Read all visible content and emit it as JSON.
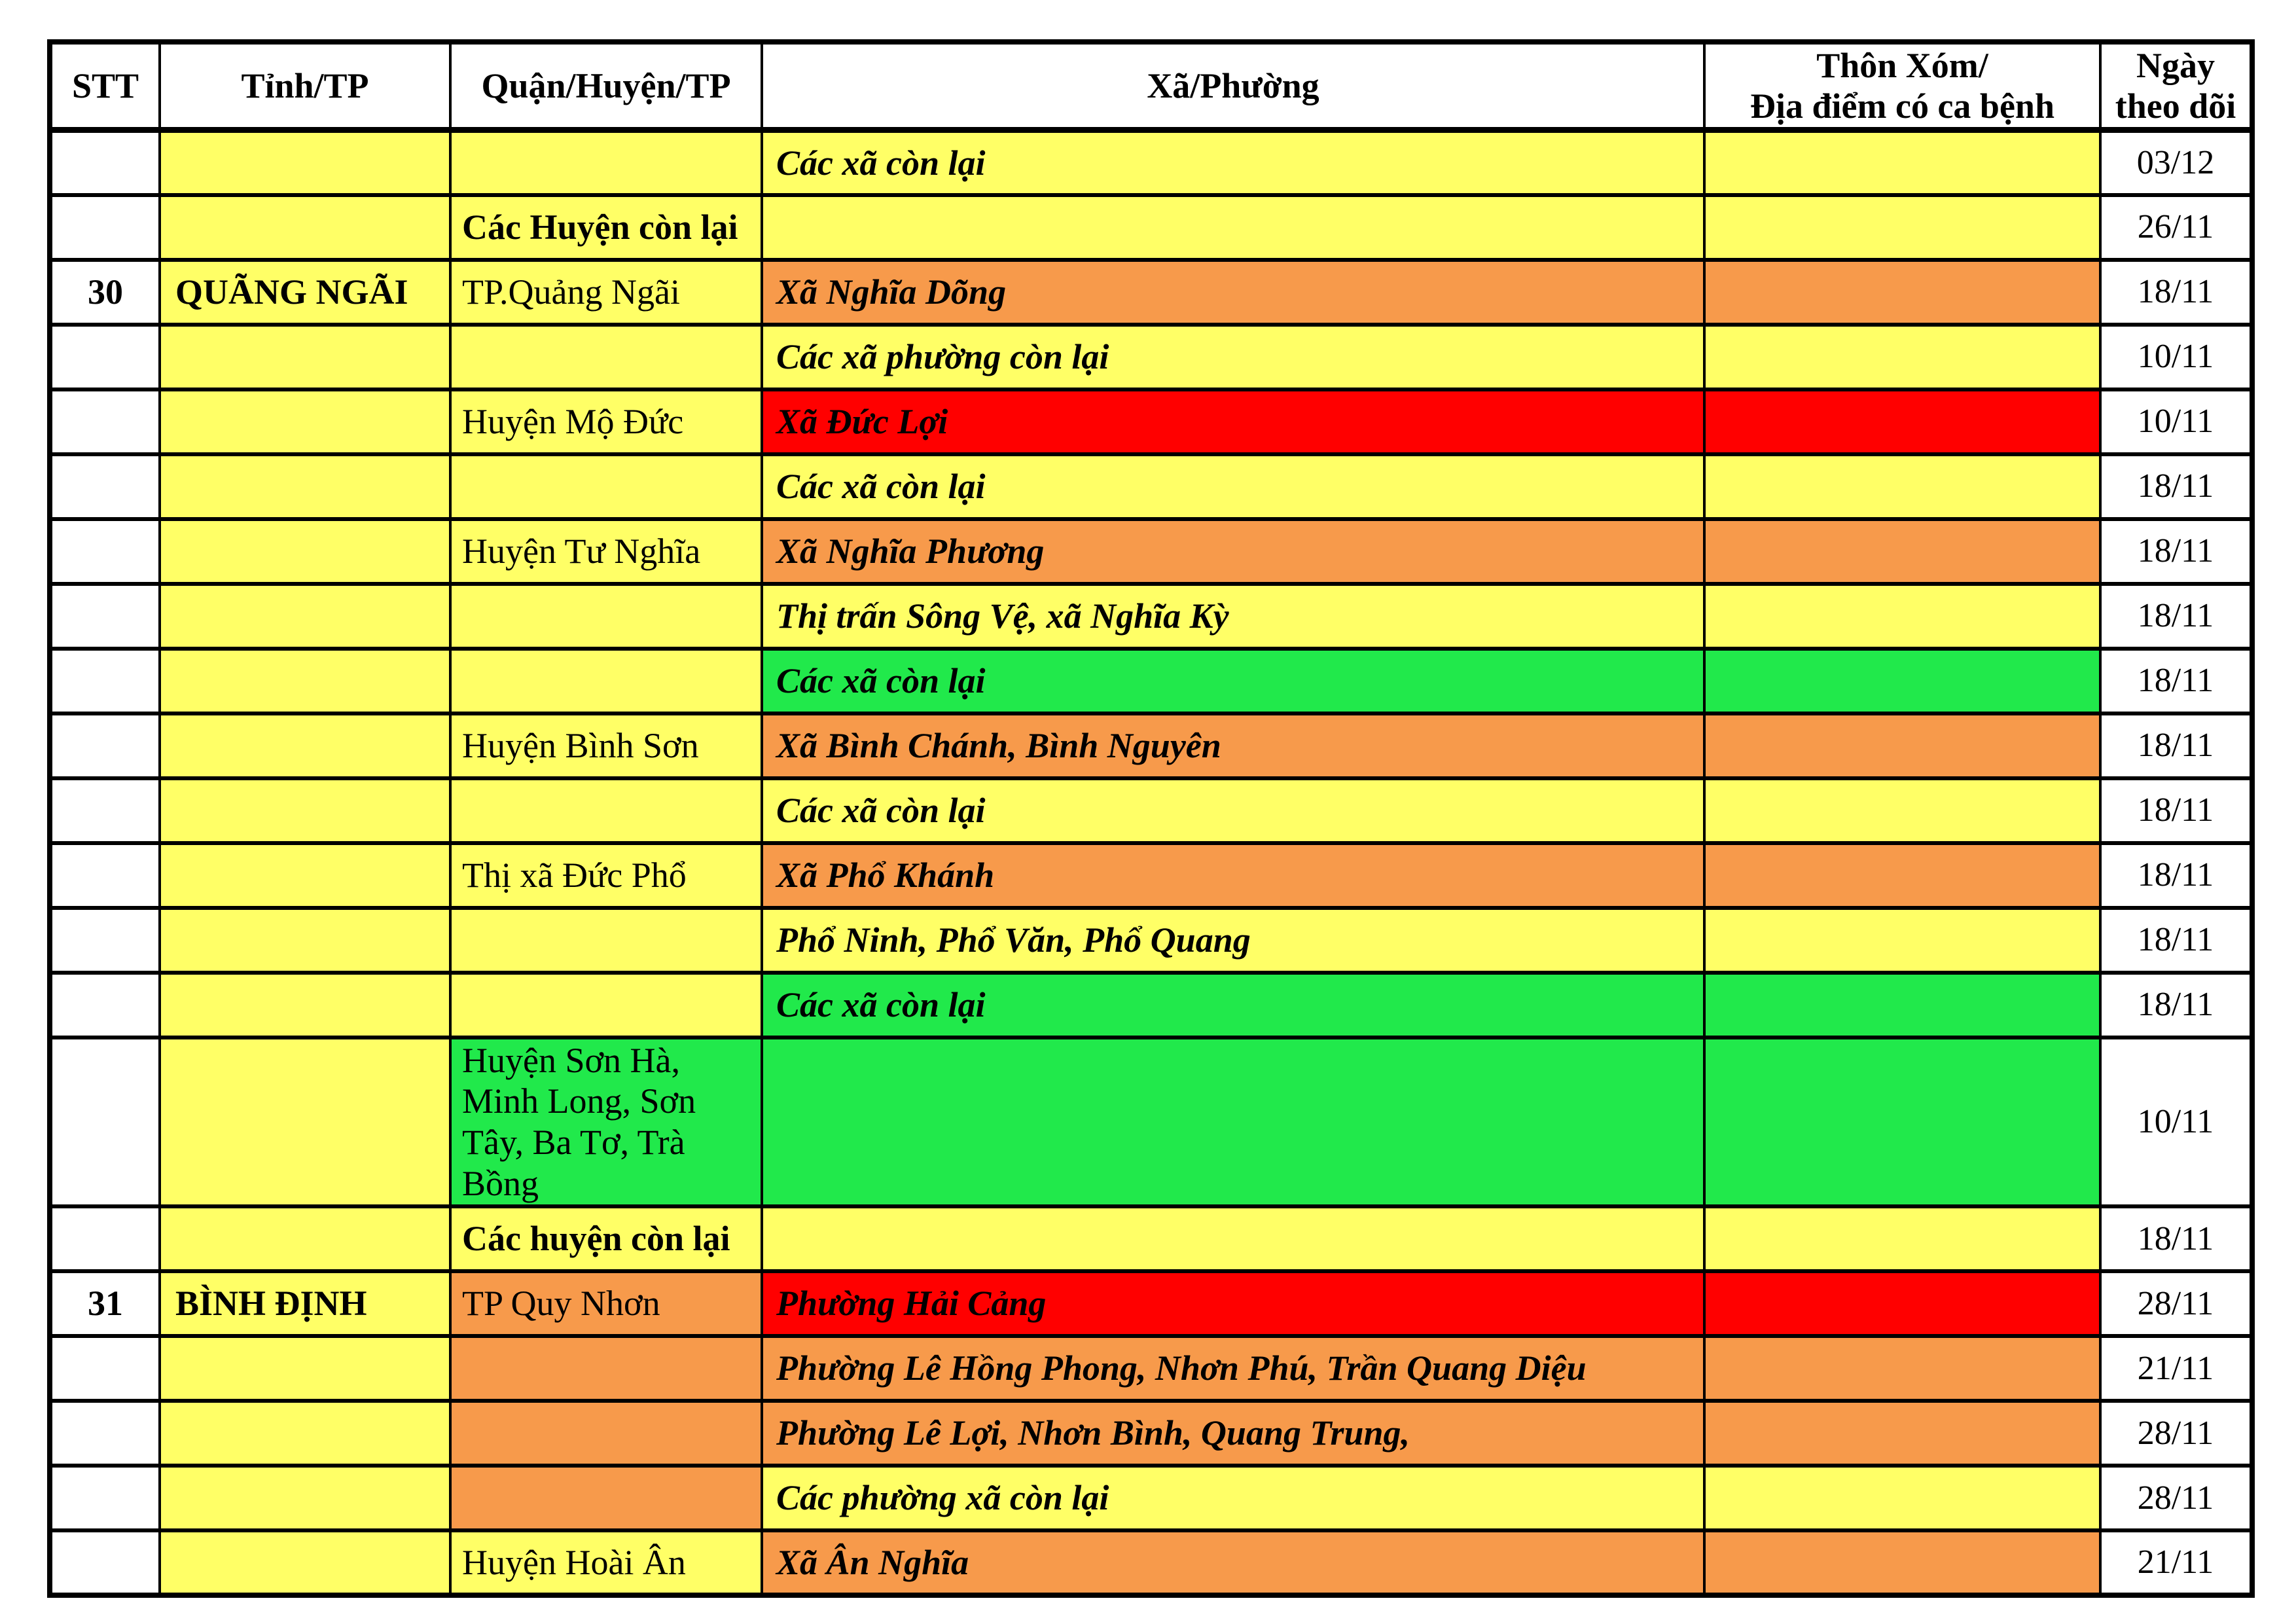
{
  "table": {
    "header": {
      "stt": "STT",
      "province": "Tỉnh/TP",
      "district": "Quận/Huyện/TP",
      "ward": "Xã/Phường",
      "hamlet_line1": "Thôn Xóm/",
      "hamlet_line2": "Địa điểm có ca bệnh",
      "date_line1": "Ngày",
      "date_line2": "theo dõi"
    },
    "colors": {
      "yellow": "#FFFF66",
      "orange": "#F79A4B",
      "red": "#FF0000",
      "green": "#21E94B",
      "white": "#FFFFFF"
    },
    "rows": [
      {
        "stt": "",
        "province": "",
        "district": "",
        "ward": "Các xã còn lại",
        "date": "03/12",
        "province_bg": "yellow",
        "district_bg": "yellow",
        "ward_bg": "yellow",
        "hamlet_bg": "yellow",
        "district_bold": false,
        "tall": false
      },
      {
        "stt": "",
        "province": "",
        "district": "Các Huyện còn lại",
        "ward": "",
        "date": "26/11",
        "province_bg": "yellow",
        "district_bg": "yellow",
        "ward_bg": "yellow",
        "hamlet_bg": "yellow",
        "district_bold": true,
        "tall": false
      },
      {
        "stt": "30",
        "province": "QUÃNG NGÃI",
        "district": "TP.Quảng Ngãi",
        "ward": "Xã Nghĩa Dõng",
        "date": "18/11",
        "province_bg": "yellow",
        "district_bg": "yellow",
        "ward_bg": "orange",
        "hamlet_bg": "orange",
        "district_bold": false,
        "tall": false
      },
      {
        "stt": "",
        "province": "",
        "district": "",
        "ward": "Các xã phường còn lại",
        "date": "10/11",
        "province_bg": "yellow",
        "district_bg": "yellow",
        "ward_bg": "yellow",
        "hamlet_bg": "yellow",
        "district_bold": false,
        "tall": false
      },
      {
        "stt": "",
        "province": "",
        "district": "Huyện Mộ Đức",
        "ward": "Xã Đức Lợi",
        "date": "10/11",
        "province_bg": "yellow",
        "district_bg": "yellow",
        "ward_bg": "red",
        "hamlet_bg": "red",
        "district_bold": false,
        "tall": false
      },
      {
        "stt": "",
        "province": "",
        "district": "",
        "ward": "Các xã còn lại",
        "date": "18/11",
        "province_bg": "yellow",
        "district_bg": "yellow",
        "ward_bg": "yellow",
        "hamlet_bg": "yellow",
        "district_bold": false,
        "tall": false
      },
      {
        "stt": "",
        "province": "",
        "district": "Huyện Tư Nghĩa",
        "ward": "Xã Nghĩa Phương",
        "date": "18/11",
        "province_bg": "yellow",
        "district_bg": "yellow",
        "ward_bg": "orange",
        "hamlet_bg": "orange",
        "district_bold": false,
        "tall": false
      },
      {
        "stt": "",
        "province": "",
        "district": "",
        "ward": "Thị trấn Sông Vệ, xã Nghĩa Kỳ",
        "date": "18/11",
        "province_bg": "yellow",
        "district_bg": "yellow",
        "ward_bg": "yellow",
        "hamlet_bg": "yellow",
        "district_bold": false,
        "tall": false
      },
      {
        "stt": "",
        "province": "",
        "district": "",
        "ward": "Các xã còn lại",
        "date": "18/11",
        "province_bg": "yellow",
        "district_bg": "yellow",
        "ward_bg": "green",
        "hamlet_bg": "green",
        "district_bold": false,
        "tall": false
      },
      {
        "stt": "",
        "province": "",
        "district": "Huyện Bình Sơn",
        "ward": "Xã Bình Chánh, Bình Nguyên",
        "date": "18/11",
        "province_bg": "yellow",
        "district_bg": "yellow",
        "ward_bg": "orange",
        "hamlet_bg": "orange",
        "district_bold": false,
        "tall": false
      },
      {
        "stt": "",
        "province": "",
        "district": "",
        "ward": "Các xã còn lại",
        "date": "18/11",
        "province_bg": "yellow",
        "district_bg": "yellow",
        "ward_bg": "yellow",
        "hamlet_bg": "yellow",
        "district_bold": false,
        "tall": false
      },
      {
        "stt": "",
        "province": "",
        "district": "Thị xã Đức Phổ",
        "ward": "Xã Phổ Khánh",
        "date": "18/11",
        "province_bg": "yellow",
        "district_bg": "yellow",
        "ward_bg": "orange",
        "hamlet_bg": "orange",
        "district_bold": false,
        "tall": false
      },
      {
        "stt": "",
        "province": "",
        "district": "",
        "ward": "Phổ Ninh, Phổ Văn, Phổ Quang",
        "date": "18/11",
        "province_bg": "yellow",
        "district_bg": "yellow",
        "ward_bg": "yellow",
        "hamlet_bg": "yellow",
        "district_bold": false,
        "tall": false
      },
      {
        "stt": "",
        "province": "",
        "district": "",
        "ward": "Các xã còn lại",
        "date": "18/11",
        "province_bg": "yellow",
        "district_bg": "yellow",
        "ward_bg": "green",
        "hamlet_bg": "green",
        "district_bold": false,
        "tall": false
      },
      {
        "stt": "",
        "province": "",
        "district": "Huyện Sơn Hà, Minh Long, Sơn Tây, Ba Tơ, Trà Bồng",
        "ward": "",
        "date": "10/11",
        "province_bg": "yellow",
        "district_bg": "green",
        "ward_bg": "green",
        "hamlet_bg": "green",
        "district_bold": false,
        "tall": true
      },
      {
        "stt": "",
        "province": "",
        "district": "Các huyện còn lại",
        "ward": "",
        "date": "18/11",
        "province_bg": "yellow",
        "district_bg": "yellow",
        "ward_bg": "yellow",
        "hamlet_bg": "yellow",
        "district_bold": true,
        "tall": false
      },
      {
        "stt": "31",
        "province": "BÌNH ĐỊNH",
        "district": "TP Quy Nhơn",
        "ward": "Phường Hải Cảng",
        "date": "28/11",
        "province_bg": "yellow",
        "district_bg": "orange",
        "ward_bg": "red",
        "hamlet_bg": "red",
        "district_bold": false,
        "tall": false
      },
      {
        "stt": "",
        "province": "",
        "district": "",
        "ward": "Phường Lê Hồng Phong, Nhơn Phú, Trần Quang Diệu",
        "date": "21/11",
        "province_bg": "yellow",
        "district_bg": "orange",
        "ward_bg": "orange",
        "hamlet_bg": "orange",
        "district_bold": false,
        "tall": false
      },
      {
        "stt": "",
        "province": "",
        "district": "",
        "ward": "Phường Lê Lợi, Nhơn Bình, Quang Trung,",
        "date": "28/11",
        "province_bg": "yellow",
        "district_bg": "orange",
        "ward_bg": "orange",
        "hamlet_bg": "orange",
        "district_bold": false,
        "tall": false
      },
      {
        "stt": "",
        "province": "",
        "district": "",
        "ward": "Các phường xã còn lại",
        "date": "28/11",
        "province_bg": "yellow",
        "district_bg": "orange",
        "ward_bg": "yellow",
        "hamlet_bg": "yellow",
        "district_bold": false,
        "tall": false
      },
      {
        "stt": "",
        "province": "",
        "district": "Huyện Hoài Ân",
        "ward": "Xã Ân Nghĩa",
        "date": "21/11",
        "province_bg": "yellow",
        "district_bg": "yellow",
        "ward_bg": "orange",
        "hamlet_bg": "orange",
        "district_bold": false,
        "tall": false
      }
    ]
  }
}
